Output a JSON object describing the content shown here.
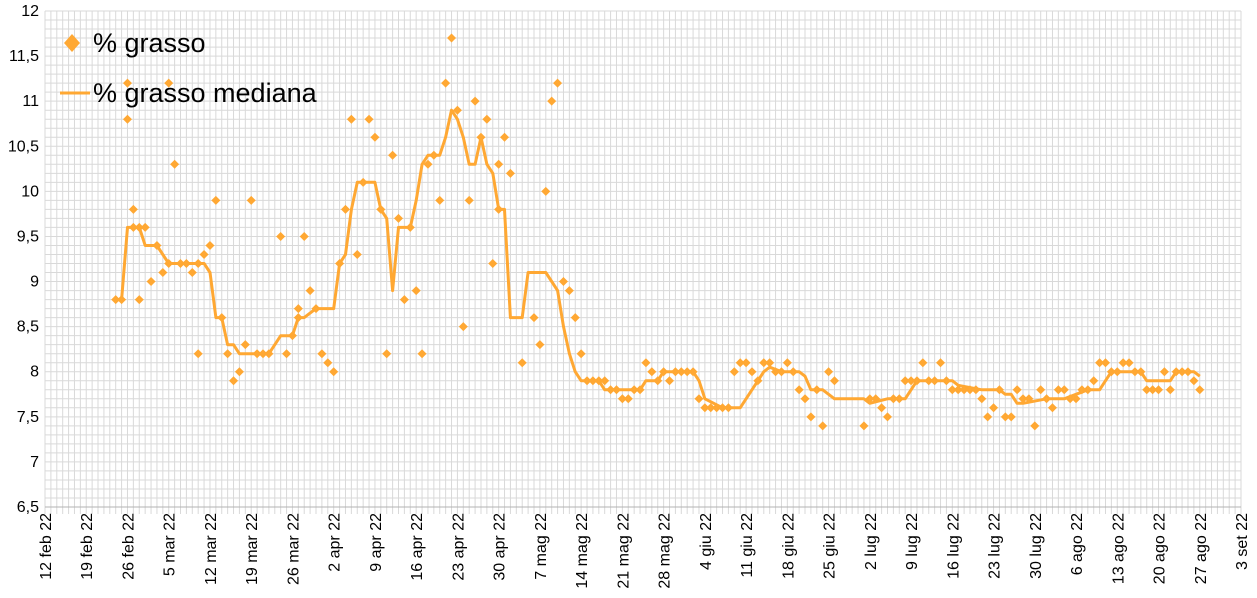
{
  "chart_data": {
    "type": "scatter",
    "title": "",
    "xlabel": "",
    "ylabel": "",
    "ylim": [
      6.5,
      12
    ],
    "yticks": [
      "6,5",
      "7",
      "7,5",
      "8",
      "8,5",
      "9",
      "9,5",
      "10",
      "10,5",
      "11",
      "11,5",
      "12"
    ],
    "xticks": [
      "12 feb 22",
      "19 feb 22",
      "26 feb 22",
      "5 mar 22",
      "12 mar 22",
      "19 mar 22",
      "26 mar 22",
      "2 apr 22",
      "9 apr 22",
      "16 apr 22",
      "23 apr 22",
      "30 apr 22",
      "7 mag 22",
      "14 mag 22",
      "21 mag 22",
      "28 mag 22",
      "4 giu 22",
      "11 giu 22",
      "18 giu 22",
      "25 giu 22",
      "2 lug 22",
      "9 lug 22",
      "16 lug 22",
      "23 lug 22",
      "30 lug 22",
      "6 ago 22",
      "13 ago 22",
      "20 ago 22",
      "27 ago 22",
      "3 set 22"
    ],
    "grid": true,
    "legend_position": "top-left",
    "colors": {
      "series": "#ffa833",
      "grid": "#d9d9d9"
    },
    "series": [
      {
        "name": "% grasso",
        "kind": "scatter",
        "marker": "diamond",
        "x": [
          "2022-02-24",
          "2022-02-25",
          "2022-02-26",
          "2022-02-26",
          "2022-02-27",
          "2022-02-27",
          "2022-02-28",
          "2022-02-28",
          "2022-03-01",
          "2022-03-02",
          "2022-03-03",
          "2022-03-04",
          "2022-03-05",
          "2022-03-05",
          "2022-03-06",
          "2022-03-07",
          "2022-03-08",
          "2022-03-09",
          "2022-03-10",
          "2022-03-10",
          "2022-03-11",
          "2022-03-12",
          "2022-03-13",
          "2022-03-14",
          "2022-03-15",
          "2022-03-16",
          "2022-03-17",
          "2022-03-18",
          "2022-03-19",
          "2022-03-20",
          "2022-03-21",
          "2022-03-22",
          "2022-03-24",
          "2022-03-25",
          "2022-03-26",
          "2022-03-27",
          "2022-03-27",
          "2022-03-28",
          "2022-03-29",
          "2022-03-30",
          "2022-03-31",
          "2022-04-01",
          "2022-04-02",
          "2022-04-03",
          "2022-04-04",
          "2022-04-05",
          "2022-04-06",
          "2022-04-07",
          "2022-04-08",
          "2022-04-09",
          "2022-04-10",
          "2022-04-11",
          "2022-04-12",
          "2022-04-13",
          "2022-04-14",
          "2022-04-15",
          "2022-04-16",
          "2022-04-17",
          "2022-04-18",
          "2022-04-19",
          "2022-04-20",
          "2022-04-21",
          "2022-04-22",
          "2022-04-23",
          "2022-04-24",
          "2022-04-25",
          "2022-04-26",
          "2022-04-27",
          "2022-04-28",
          "2022-04-29",
          "2022-04-30",
          "2022-04-30",
          "2022-05-01",
          "2022-05-02",
          "2022-05-04",
          "2022-05-06",
          "2022-05-07",
          "2022-05-08",
          "2022-05-09",
          "2022-05-10",
          "2022-05-11",
          "2022-05-12",
          "2022-05-13",
          "2022-05-14",
          "2022-05-15",
          "2022-05-16",
          "2022-05-17",
          "2022-05-18",
          "2022-05-19",
          "2022-05-20",
          "2022-05-21",
          "2022-05-22",
          "2022-05-23",
          "2022-05-24",
          "2022-05-25",
          "2022-05-26",
          "2022-05-27",
          "2022-05-28",
          "2022-05-29",
          "2022-05-30",
          "2022-05-31",
          "2022-06-01",
          "2022-06-02",
          "2022-06-03",
          "2022-06-04",
          "2022-06-05",
          "2022-06-06",
          "2022-06-07",
          "2022-06-08",
          "2022-06-09",
          "2022-06-10",
          "2022-06-11",
          "2022-06-12",
          "2022-06-13",
          "2022-06-14",
          "2022-06-15",
          "2022-06-16",
          "2022-06-17",
          "2022-06-18",
          "2022-06-19",
          "2022-06-20",
          "2022-06-21",
          "2022-06-22",
          "2022-06-23",
          "2022-06-24",
          "2022-06-25",
          "2022-06-26",
          "2022-07-01",
          "2022-07-02",
          "2022-07-03",
          "2022-07-04",
          "2022-07-05",
          "2022-07-06",
          "2022-07-07",
          "2022-07-08",
          "2022-07-09",
          "2022-07-10",
          "2022-07-11",
          "2022-07-12",
          "2022-07-13",
          "2022-07-14",
          "2022-07-15",
          "2022-07-16",
          "2022-07-17",
          "2022-07-18",
          "2022-07-19",
          "2022-07-20",
          "2022-07-21",
          "2022-07-22",
          "2022-07-23",
          "2022-07-24",
          "2022-07-25",
          "2022-07-26",
          "2022-07-27",
          "2022-07-28",
          "2022-07-29",
          "2022-07-30",
          "2022-07-31",
          "2022-08-01",
          "2022-08-02",
          "2022-08-03",
          "2022-08-04",
          "2022-08-05",
          "2022-08-06",
          "2022-08-07",
          "2022-08-08",
          "2022-08-09",
          "2022-08-10",
          "2022-08-11",
          "2022-08-12",
          "2022-08-13",
          "2022-08-14",
          "2022-08-15",
          "2022-08-16",
          "2022-08-17",
          "2022-08-18",
          "2022-08-19",
          "2022-08-20",
          "2022-08-21",
          "2022-08-22",
          "2022-08-23",
          "2022-08-24",
          "2022-08-25",
          "2022-08-26",
          "2022-08-27"
        ],
        "y": [
          8.8,
          8.8,
          11.2,
          10.8,
          9.8,
          9.6,
          9.6,
          8.8,
          9.6,
          9.0,
          9.4,
          9.1,
          11.2,
          9.2,
          10.3,
          9.2,
          9.2,
          9.1,
          9.2,
          8.2,
          9.3,
          9.4,
          9.9,
          8.6,
          8.2,
          7.9,
          8.0,
          8.3,
          9.9,
          8.2,
          8.2,
          8.2,
          9.5,
          8.2,
          8.4,
          8.6,
          8.7,
          9.5,
          8.9,
          8.7,
          8.2,
          8.1,
          8.0,
          9.2,
          9.8,
          10.8,
          9.3,
          10.1,
          10.8,
          10.6,
          9.8,
          8.2,
          10.4,
          9.7,
          8.8,
          9.6,
          8.9,
          8.2,
          10.3,
          10.4,
          9.9,
          11.2,
          11.7,
          10.9,
          8.5,
          9.9,
          11.0,
          10.6,
          10.8,
          9.2,
          10.3,
          9.8,
          10.6,
          10.2,
          8.1,
          8.6,
          8.3,
          10.0,
          11.0,
          11.2,
          9.0,
          8.9,
          8.6,
          8.2,
          7.9,
          7.9,
          7.9,
          7.9,
          7.8,
          7.8,
          7.7,
          7.7,
          7.8,
          7.8,
          8.1,
          8.0,
          7.9,
          8.0,
          7.9,
          8.0,
          8.0,
          8.0,
          8.0,
          7.7,
          7.6,
          7.6,
          7.6,
          7.6,
          7.6,
          8.0,
          8.1,
          8.1,
          8.0,
          7.9,
          8.1,
          8.1,
          8.0,
          8.0,
          8.1,
          8.0,
          7.8,
          7.7,
          7.5,
          7.8,
          7.4,
          8.0,
          7.9,
          7.4,
          7.7,
          7.7,
          7.6,
          7.5,
          7.7,
          7.7,
          7.9,
          7.9,
          7.9,
          8.1,
          7.9,
          7.9,
          8.1,
          7.9,
          7.8,
          7.8,
          7.8,
          7.8,
          7.8,
          7.7,
          7.5,
          7.6,
          7.8,
          7.5,
          7.5,
          7.8,
          7.7,
          7.7,
          7.4,
          7.8,
          7.7,
          7.6,
          7.8,
          7.8,
          7.7,
          7.7,
          7.8,
          7.8,
          7.9,
          8.1,
          8.1,
          8.0,
          8.0,
          8.1,
          8.1,
          8.0,
          8.0,
          7.8,
          7.8,
          7.8,
          8.0,
          7.8,
          8.0,
          8.0,
          8.0,
          7.9,
          7.8
        ]
      },
      {
        "name": "% grasso mediana",
        "kind": "line",
        "x": [
          "2022-02-24",
          "2022-02-25",
          "2022-02-26",
          "2022-02-28",
          "2022-03-01",
          "2022-03-03",
          "2022-03-04",
          "2022-03-05",
          "2022-03-06",
          "2022-03-11",
          "2022-03-12",
          "2022-03-13",
          "2022-03-14",
          "2022-03-15",
          "2022-03-16",
          "2022-03-17",
          "2022-03-22",
          "2022-03-24",
          "2022-03-26",
          "2022-03-27",
          "2022-03-28",
          "2022-03-30",
          "2022-03-31",
          "2022-04-02",
          "2022-04-03",
          "2022-04-04",
          "2022-04-05",
          "2022-04-06",
          "2022-04-08",
          "2022-04-09",
          "2022-04-10",
          "2022-04-11",
          "2022-04-12",
          "2022-04-13",
          "2022-04-14",
          "2022-04-15",
          "2022-04-16",
          "2022-04-17",
          "2022-04-18",
          "2022-04-20",
          "2022-04-21",
          "2022-04-22",
          "2022-04-23",
          "2022-04-24",
          "2022-04-25",
          "2022-04-26",
          "2022-04-27",
          "2022-04-28",
          "2022-04-29",
          "2022-04-30",
          "2022-05-01",
          "2022-05-02",
          "2022-05-03",
          "2022-05-04",
          "2022-05-05",
          "2022-05-06",
          "2022-05-07",
          "2022-05-08",
          "2022-05-09",
          "2022-05-10",
          "2022-05-11",
          "2022-05-12",
          "2022-05-13",
          "2022-05-14",
          "2022-05-15",
          "2022-05-17",
          "2022-05-18",
          "2022-05-19",
          "2022-05-20",
          "2022-05-24",
          "2022-05-25",
          "2022-05-26",
          "2022-05-27",
          "2022-05-28",
          "2022-06-01",
          "2022-06-02",
          "2022-06-03",
          "2022-06-04",
          "2022-06-07",
          "2022-06-08",
          "2022-06-09",
          "2022-06-10",
          "2022-06-14",
          "2022-06-15",
          "2022-06-17",
          "2022-06-19",
          "2022-06-20",
          "2022-06-21",
          "2022-06-22",
          "2022-06-24",
          "2022-06-26",
          "2022-07-01",
          "2022-07-02",
          "2022-07-05",
          "2022-07-06",
          "2022-07-07",
          "2022-07-08",
          "2022-07-10",
          "2022-07-15",
          "2022-07-16",
          "2022-07-17",
          "2022-07-21",
          "2022-07-22",
          "2022-07-23",
          "2022-07-24",
          "2022-07-25",
          "2022-07-26",
          "2022-07-27",
          "2022-07-28",
          "2022-08-01",
          "2022-08-02",
          "2022-08-03",
          "2022-08-04",
          "2022-08-06",
          "2022-08-08",
          "2022-08-09",
          "2022-08-10",
          "2022-08-11",
          "2022-08-12",
          "2022-08-16",
          "2022-08-17",
          "2022-08-18",
          "2022-08-21",
          "2022-08-22",
          "2022-08-23",
          "2022-08-26",
          "2022-08-27"
        ],
        "y": [
          8.8,
          8.8,
          9.6,
          9.6,
          9.4,
          9.4,
          9.3,
          9.2,
          9.2,
          9.2,
          9.1,
          8.6,
          8.6,
          8.3,
          8.3,
          8.2,
          8.2,
          8.4,
          8.4,
          8.6,
          8.6,
          8.7,
          8.7,
          8.7,
          9.2,
          9.3,
          9.8,
          10.1,
          10.1,
          10.1,
          9.8,
          9.7,
          8.9,
          9.6,
          9.6,
          9.6,
          9.9,
          10.3,
          10.4,
          10.4,
          10.6,
          10.9,
          10.8,
          10.6,
          10.3,
          10.3,
          10.6,
          10.3,
          10.2,
          9.8,
          9.8,
          8.6,
          8.6,
          8.6,
          9.1,
          9.1,
          9.1,
          9.1,
          9.0,
          8.9,
          8.5,
          8.2,
          8.0,
          7.9,
          7.9,
          7.9,
          7.8,
          7.8,
          7.8,
          7.8,
          7.9,
          7.9,
          7.9,
          8.0,
          8.0,
          8.0,
          7.9,
          7.7,
          7.6,
          7.6,
          7.6,
          7.6,
          8.0,
          8.05,
          8.0,
          8.0,
          8.0,
          7.95,
          7.8,
          7.8,
          7.7,
          7.7,
          7.65,
          7.7,
          7.7,
          7.7,
          7.7,
          7.9,
          7.9,
          7.9,
          7.85,
          7.8,
          7.8,
          7.8,
          7.8,
          7.75,
          7.75,
          7.65,
          7.65,
          7.7,
          7.7,
          7.7,
          7.7,
          7.75,
          7.8,
          7.8,
          7.8,
          7.9,
          8.0,
          8.0,
          8.0,
          7.9,
          7.9,
          7.9,
          8.0,
          8.0,
          7.95
        ]
      }
    ]
  }
}
